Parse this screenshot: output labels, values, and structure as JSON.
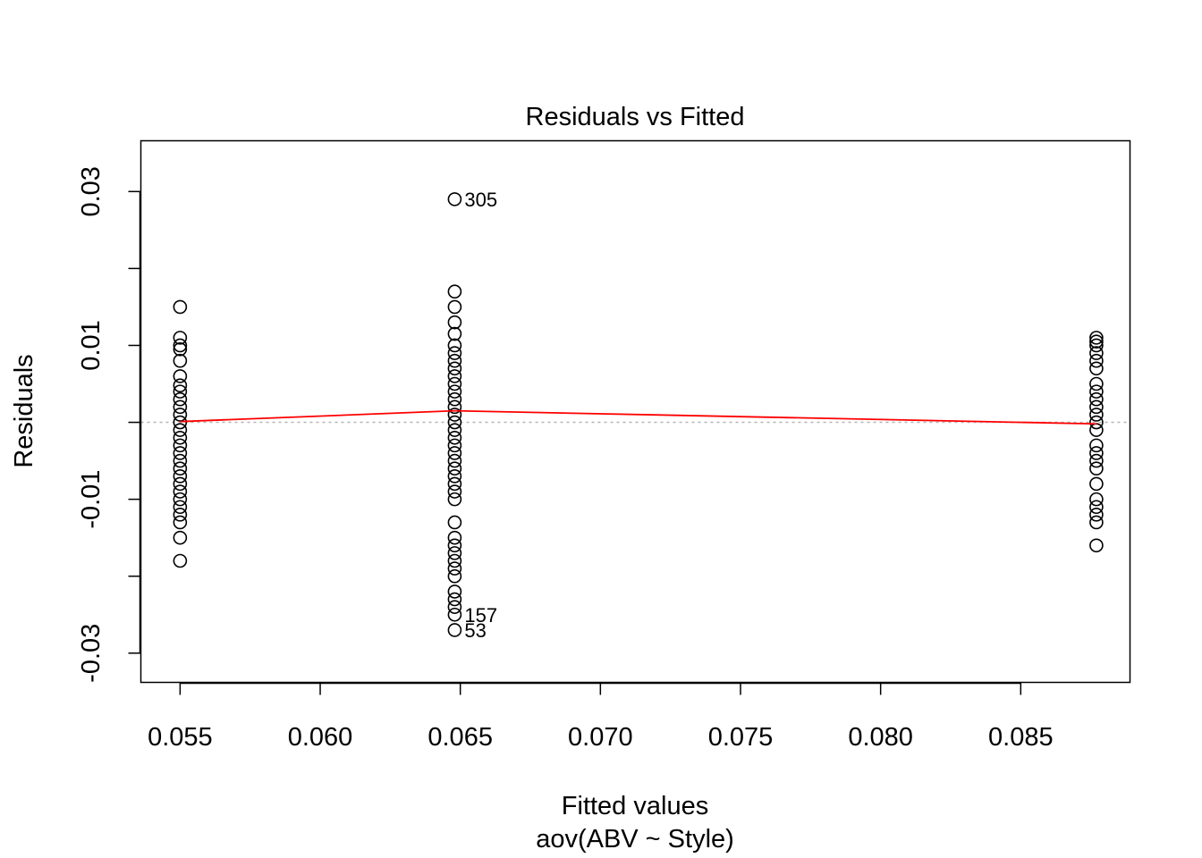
{
  "chart_data": {
    "type": "scatter",
    "title": "Residuals vs Fitted",
    "xlabel": "Fitted values",
    "xsublabel": "aov(ABV ~ Style)",
    "ylabel": "Residuals",
    "xlim": [
      0.0536,
      0.0889
    ],
    "ylim": [
      -0.0338,
      0.0366
    ],
    "x_ticks": [
      0.055,
      0.06,
      0.065,
      0.07,
      0.075,
      0.08,
      0.085
    ],
    "x_tick_labels": [
      "0.055",
      "0.060",
      "0.065",
      "0.070",
      "0.075",
      "0.080",
      "0.085"
    ],
    "y_ticks": [
      -0.03,
      -0.02,
      -0.01,
      0.0,
      0.01,
      0.02,
      0.03
    ],
    "y_tick_labels": [
      "-0.03",
      "",
      "-0.01",
      "",
      "0.01",
      "",
      "0.03"
    ],
    "zero_line": {
      "y": 0,
      "color": "#b3b3b3",
      "style": "dotted"
    },
    "point_style": {
      "shape": "open-circle",
      "color": "#000000"
    },
    "groups": [
      {
        "x": 0.055,
        "residuals": [
          0.015,
          0.011,
          0.01,
          0.0095,
          0.008,
          0.006,
          0.0048,
          0.004,
          0.003,
          0.002,
          0.001,
          0.0,
          -0.001,
          -0.002,
          -0.003,
          -0.004,
          -0.005,
          -0.006,
          -0.007,
          -0.008,
          -0.009,
          -0.01,
          -0.011,
          -0.012,
          -0.013,
          -0.015,
          -0.018
        ]
      },
      {
        "x": 0.0648,
        "residuals": [
          0.029,
          0.017,
          0.015,
          0.013,
          0.0115,
          0.01,
          0.009,
          0.008,
          0.007,
          0.006,
          0.005,
          0.004,
          0.003,
          0.002,
          0.001,
          0.0,
          -0.001,
          -0.002,
          -0.003,
          -0.004,
          -0.005,
          -0.006,
          -0.007,
          -0.008,
          -0.009,
          -0.01,
          -0.013,
          -0.015,
          -0.016,
          -0.017,
          -0.018,
          -0.019,
          -0.02,
          -0.022,
          -0.023,
          -0.024,
          -0.025,
          -0.027
        ]
      },
      {
        "x": 0.0877,
        "residuals": [
          0.011,
          0.0105,
          0.01,
          0.009,
          0.008,
          0.007,
          0.005,
          0.004,
          0.003,
          0.002,
          0.001,
          0.0,
          -0.001,
          -0.003,
          -0.004,
          -0.005,
          -0.006,
          -0.008,
          -0.01,
          -0.011,
          -0.012,
          -0.013,
          -0.016
        ]
      }
    ],
    "smoother": {
      "color": "#ff0000",
      "points": [
        [
          0.055,
          0.0001
        ],
        [
          0.0648,
          0.0015
        ],
        [
          0.0877,
          -0.0002
        ]
      ]
    },
    "annotations": [
      {
        "label": "305",
        "x": 0.0648,
        "y": 0.029
      },
      {
        "label": "157",
        "x": 0.0648,
        "y": -0.025
      },
      {
        "label": "53",
        "x": 0.0648,
        "y": -0.027
      }
    ]
  }
}
